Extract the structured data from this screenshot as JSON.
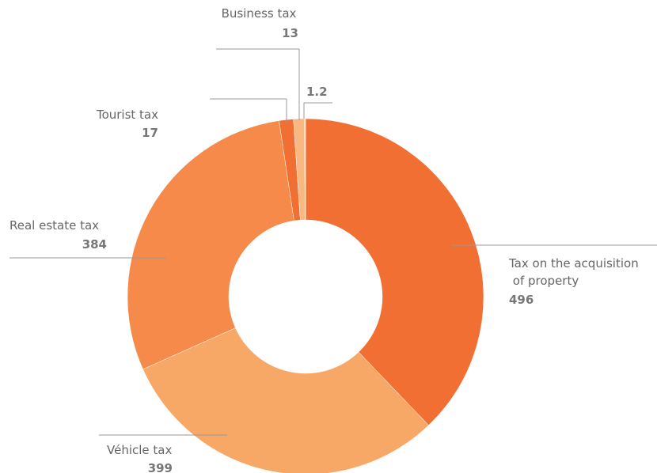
{
  "chart_data": {
    "type": "donut",
    "categories": [
      "Tax on the acquisition of property",
      "Véhicle tax",
      "Real estate tax",
      "Tourist tax",
      "Business tax",
      null
    ],
    "values": [
      496,
      399,
      384,
      17,
      13,
      1.2
    ],
    "colors": [
      "#f26f33",
      "#f7a766",
      "#f58a4b",
      "#f26f33",
      "#f8b880",
      "#fbd4a8"
    ]
  }
}
